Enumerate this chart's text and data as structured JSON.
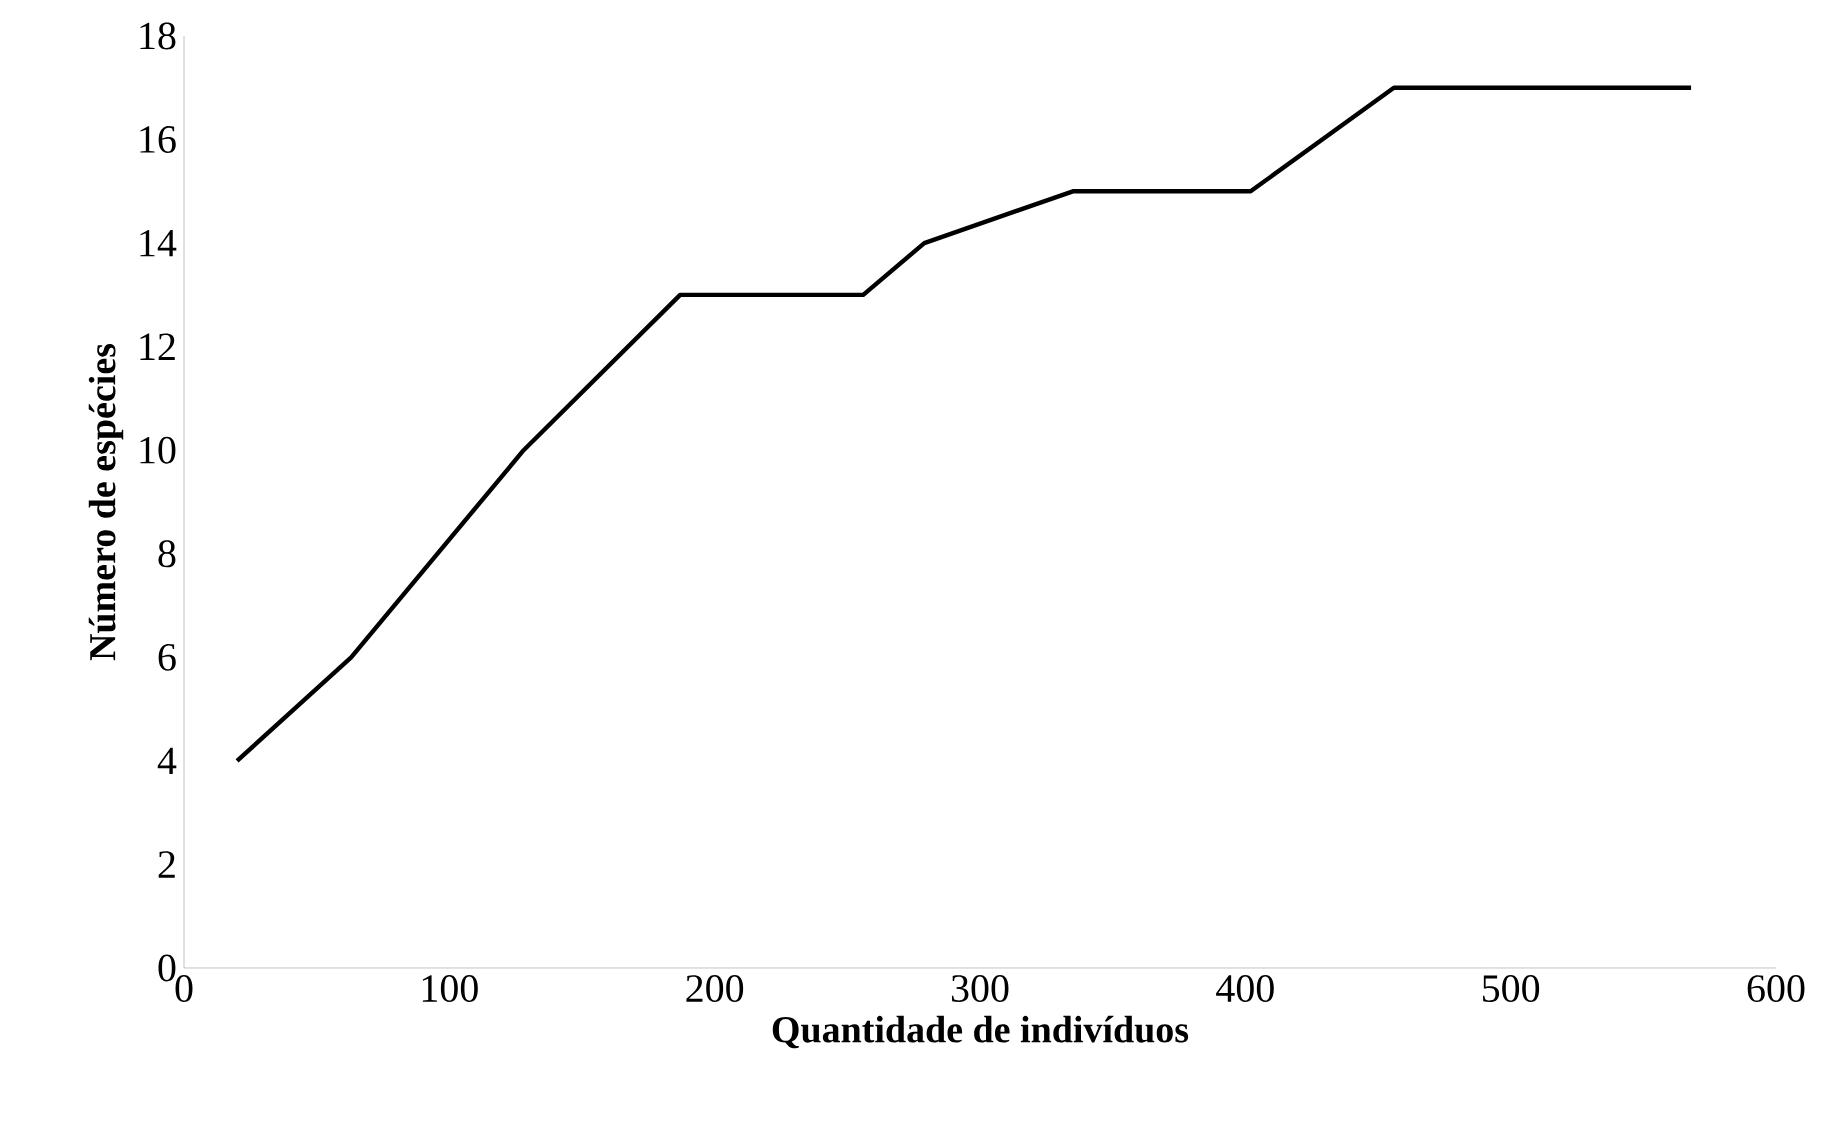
{
  "chart_data": {
    "type": "line",
    "xlabel": "Quantidade  de  indivíduos",
    "ylabel": "Número  de  espécies",
    "x": [
      20,
      63,
      128,
      187,
      256,
      279,
      335,
      402,
      456,
      568
    ],
    "series": [
      {
        "color": "#000000",
        "values": [
          4,
          6,
          10,
          13,
          13,
          14,
          15,
          15,
          17,
          17
        ]
      }
    ],
    "xlim": [
      0,
      600
    ],
    "xticks": [
      0,
      100,
      200,
      300,
      400,
      500,
      600
    ],
    "ylim": [
      0,
      18
    ],
    "yticks": [
      0,
      2,
      4,
      6,
      8,
      10,
      12,
      14,
      16,
      18
    ],
    "grid": false,
    "marker": "none",
    "line_style": "solid"
  }
}
